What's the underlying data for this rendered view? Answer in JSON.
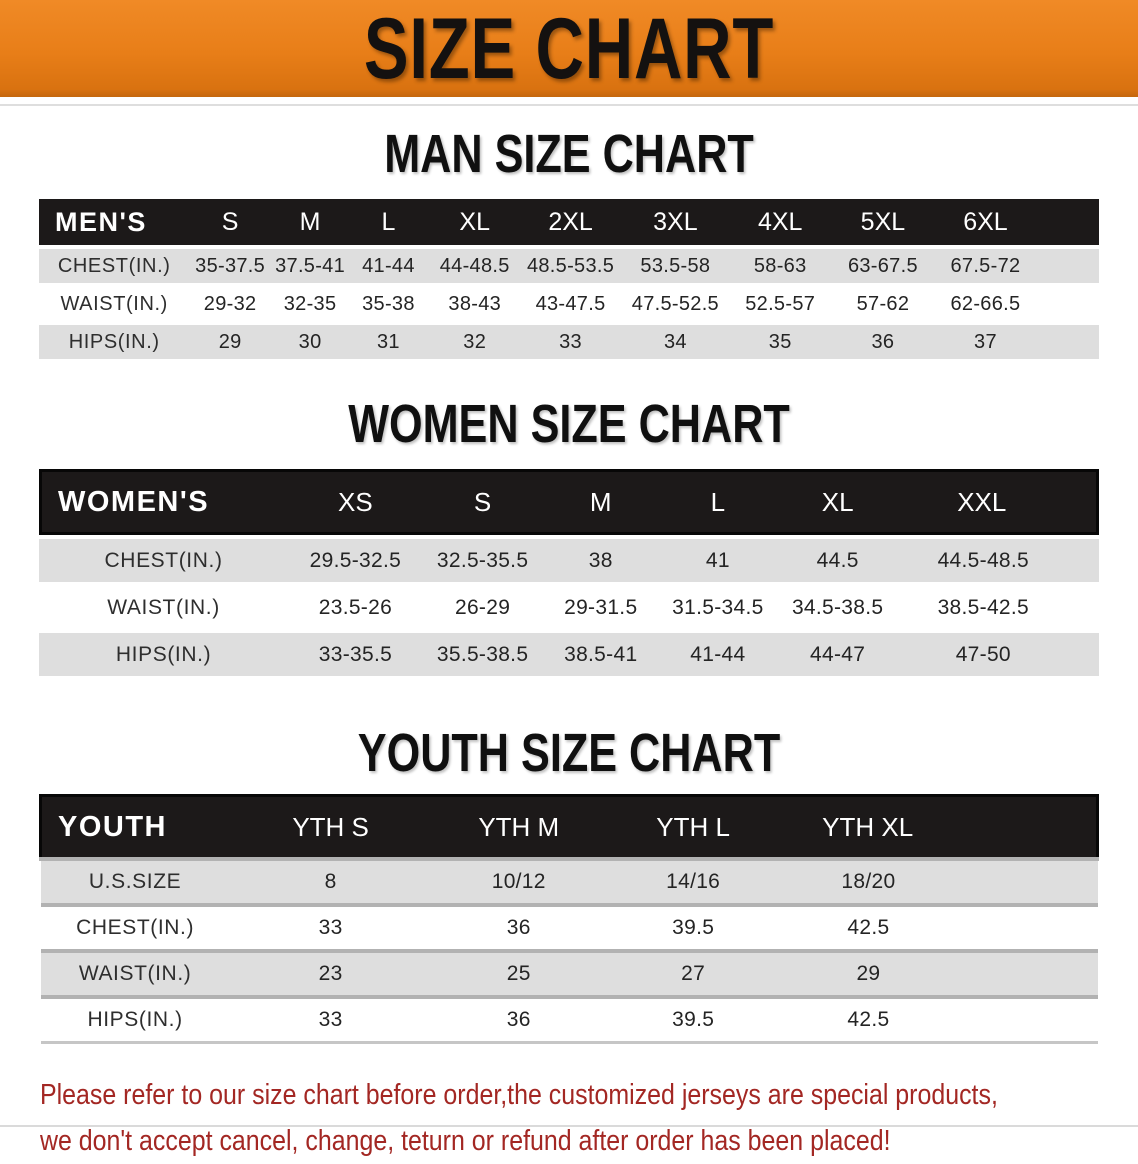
{
  "banner": {
    "title": "SIZE CHART"
  },
  "sections": [
    {
      "title": "MAN SIZE CHART",
      "header_label": "MEN'S",
      "columns": [
        "S",
        "M",
        "L",
        "XL",
        "2XL",
        "3XL",
        "4XL",
        "5XL",
        "6XL"
      ],
      "rows": [
        {
          "label": "CHEST(IN.)",
          "values": [
            "35-37.5",
            "37.5-41",
            "41-44",
            "44-48.5",
            "48.5-53.5",
            "53.5-58",
            "58-63",
            "63-67.5",
            "67.5-72"
          ]
        },
        {
          "label": "WAIST(IN.)",
          "values": [
            "29-32",
            "32-35",
            "35-38",
            "38-43",
            "43-47.5",
            "47.5-52.5",
            "52.5-57",
            "57-62",
            "62-66.5"
          ]
        },
        {
          "label": "HIPS(IN.)",
          "values": [
            "29",
            "30",
            "31",
            "32",
            "33",
            "34",
            "35",
            "36",
            "37"
          ]
        }
      ]
    },
    {
      "title": "WOMEN SIZE CHART",
      "header_label": "WOMEN'S",
      "columns": [
        "XS",
        "S",
        "M",
        "L",
        "XL",
        "XXL"
      ],
      "rows": [
        {
          "label": "CHEST(IN.)",
          "values": [
            "29.5-32.5",
            "32.5-35.5",
            "38",
            "41",
            "44.5",
            "44.5-48.5"
          ]
        },
        {
          "label": "WAIST(IN.)",
          "values": [
            "23.5-26",
            "26-29",
            "29-31.5",
            "31.5-34.5",
            "34.5-38.5",
            "38.5-42.5"
          ]
        },
        {
          "label": "HIPS(IN.)",
          "values": [
            "33-35.5",
            "35.5-38.5",
            "38.5-41",
            "41-44",
            "44-47",
            "47-50"
          ]
        }
      ]
    },
    {
      "title": "YOUTH SIZE CHART",
      "header_label": "YOUTH",
      "columns": [
        "YTH S",
        "YTH M",
        "YTH L",
        "YTH XL"
      ],
      "rows": [
        {
          "label": "U.S.SIZE",
          "values": [
            "8",
            "10/12",
            "14/16",
            "18/20"
          ]
        },
        {
          "label": "CHEST(IN.)",
          "values": [
            "33",
            "36",
            "39.5",
            "42.5"
          ]
        },
        {
          "label": "WAIST(IN.)",
          "values": [
            "23",
            "25",
            "27",
            "29"
          ]
        },
        {
          "label": "HIPS(IN.)",
          "values": [
            "33",
            "36",
            "39.5",
            "42.5"
          ]
        }
      ]
    }
  ],
  "footer": {
    "line1": "Please refer to our size chart before order,the customized jerseys are special products,",
    "line2": "we don't accept cancel, change, teturn or refund after order has been placed!"
  },
  "colors": {
    "banner_bg": "#e87e18",
    "header_bar": "#1c1919",
    "row_gray": "#dedede",
    "notice_red": "#a32723",
    "title_black": "#101010"
  }
}
